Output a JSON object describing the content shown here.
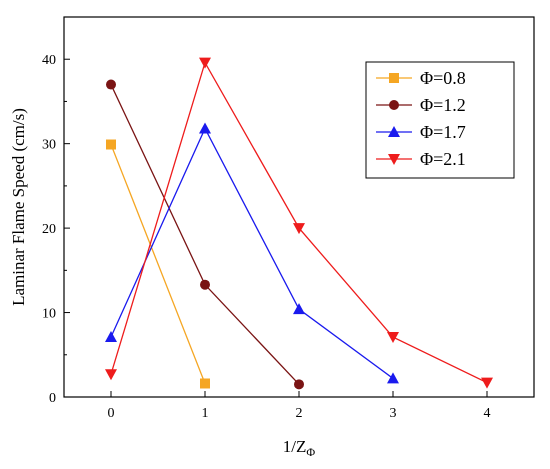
{
  "chart_data": {
    "type": "line",
    "xlabel": "1/Z",
    "xlabel_subscript": "Φ",
    "ylabel": "Laminar Flame Speed (cm/s)",
    "xlim": [
      -0.5,
      4.5
    ],
    "ylim": [
      0,
      45
    ],
    "xticks": [
      "0",
      "1",
      "2",
      "3",
      "4"
    ],
    "yticks": [
      "0",
      "10",
      "20",
      "30",
      "40"
    ],
    "grid": false,
    "legend_position": "top-right",
    "series": [
      {
        "name": "Φ=0.8",
        "color": "#f5a623",
        "marker": "square",
        "x": [
          0,
          1
        ],
        "y": [
          29.9,
          1.6
        ]
      },
      {
        "name": "Φ=1.2",
        "color": "#7a1414",
        "marker": "circle",
        "x": [
          0,
          1,
          2
        ],
        "y": [
          37.0,
          13.3,
          1.5
        ]
      },
      {
        "name": "Φ=1.7",
        "color": "#1a1aee",
        "marker": "triangle-up",
        "x": [
          0,
          1,
          2,
          3
        ],
        "y": [
          7.1,
          31.8,
          10.4,
          2.2
        ]
      },
      {
        "name": "Φ=2.1",
        "color": "#ee1c1c",
        "marker": "triangle-down",
        "x": [
          0,
          1,
          2,
          3,
          4
        ],
        "y": [
          2.7,
          39.6,
          20.0,
          7.1,
          1.7
        ]
      }
    ]
  }
}
